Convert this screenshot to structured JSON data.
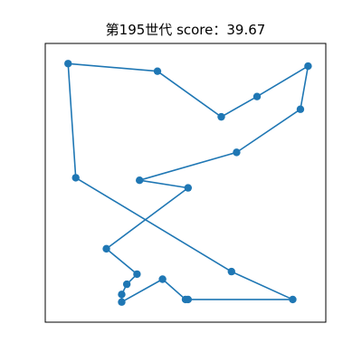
{
  "chart_data": {
    "type": "line",
    "title": "第195世代 score：39.67",
    "xlabel": "",
    "ylabel": "",
    "xlim": [
      0,
      1
    ],
    "ylim": [
      0,
      1
    ],
    "grid": false,
    "legend": "none",
    "axes_ticks_visible": false,
    "line_color": "#1f77b4",
    "marker_color": "#1f77b4",
    "series": [
      {
        "points": [
          {
            "x": 0.04,
            "y": 0.97
          },
          {
            "x": 0.39,
            "y": 0.94
          },
          {
            "x": 0.64,
            "y": 0.76
          },
          {
            "x": 0.78,
            "y": 0.84
          },
          {
            "x": 0.98,
            "y": 0.96
          },
          {
            "x": 0.95,
            "y": 0.79
          },
          {
            "x": 0.7,
            "y": 0.62
          },
          {
            "x": 0.32,
            "y": 0.51
          },
          {
            "x": 0.51,
            "y": 0.48
          },
          {
            "x": 0.19,
            "y": 0.24
          },
          {
            "x": 0.31,
            "y": 0.14
          },
          {
            "x": 0.27,
            "y": 0.1
          },
          {
            "x": 0.25,
            "y": 0.06
          },
          {
            "x": 0.25,
            "y": 0.03
          },
          {
            "x": 0.41,
            "y": 0.12
          },
          {
            "x": 0.5,
            "y": 0.04
          },
          {
            "x": 0.51,
            "y": 0.04
          },
          {
            "x": 0.92,
            "y": 0.04
          },
          {
            "x": 0.68,
            "y": 0.15
          },
          {
            "x": 0.07,
            "y": 0.52
          },
          {
            "x": 0.04,
            "y": 0.97
          }
        ]
      }
    ]
  }
}
